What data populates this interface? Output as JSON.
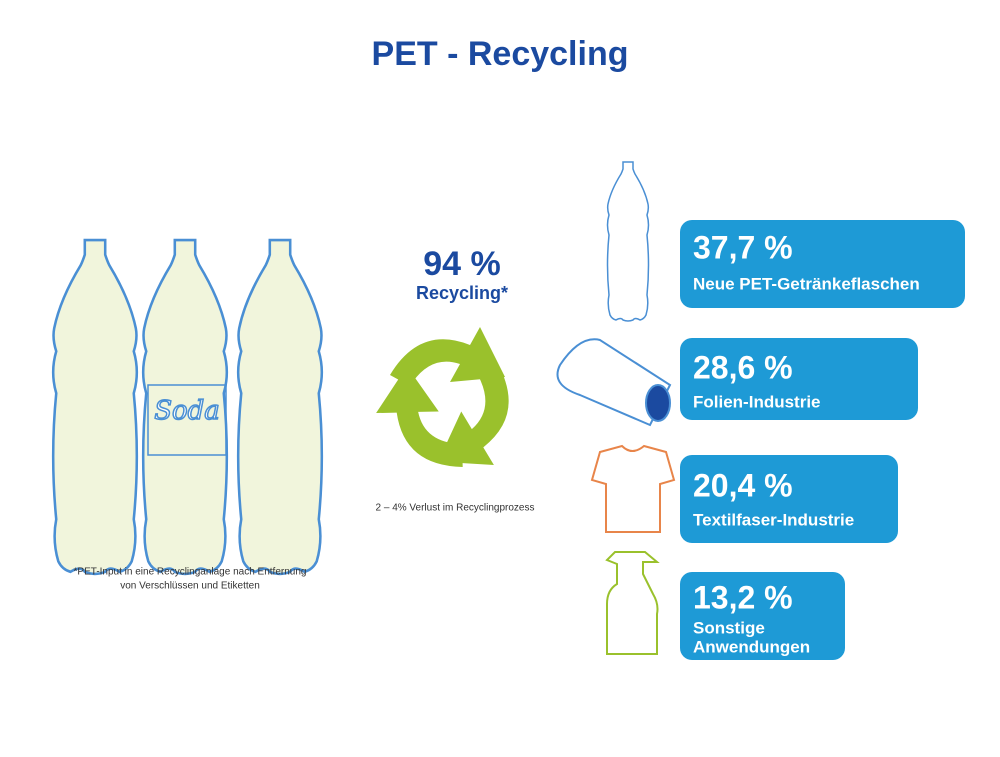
{
  "title": "PET - Recycling",
  "recycling": {
    "value": "94 %",
    "label": "Recycling*"
  },
  "loss_note": "2 – 4% Verlust im Recyclingprozess",
  "footnote": [
    "*PET-Input in eine Recyclinganlage nach Entfernung",
    "von Verschlüssen und Etiketten"
  ],
  "bottle_label": "Soda",
  "outputs": [
    {
      "value": "37,7 %",
      "label": [
        "Neue PET-Getränkeflaschen"
      ]
    },
    {
      "value": "28,6 %",
      "label": [
        "Folien-Industrie"
      ]
    },
    {
      "value": "20,4 %",
      "label": [
        "Textilfaser-Industrie"
      ]
    },
    {
      "value": "13,2 %",
      "label": [
        "Sonstige",
        "Anwendungen"
      ]
    }
  ]
}
